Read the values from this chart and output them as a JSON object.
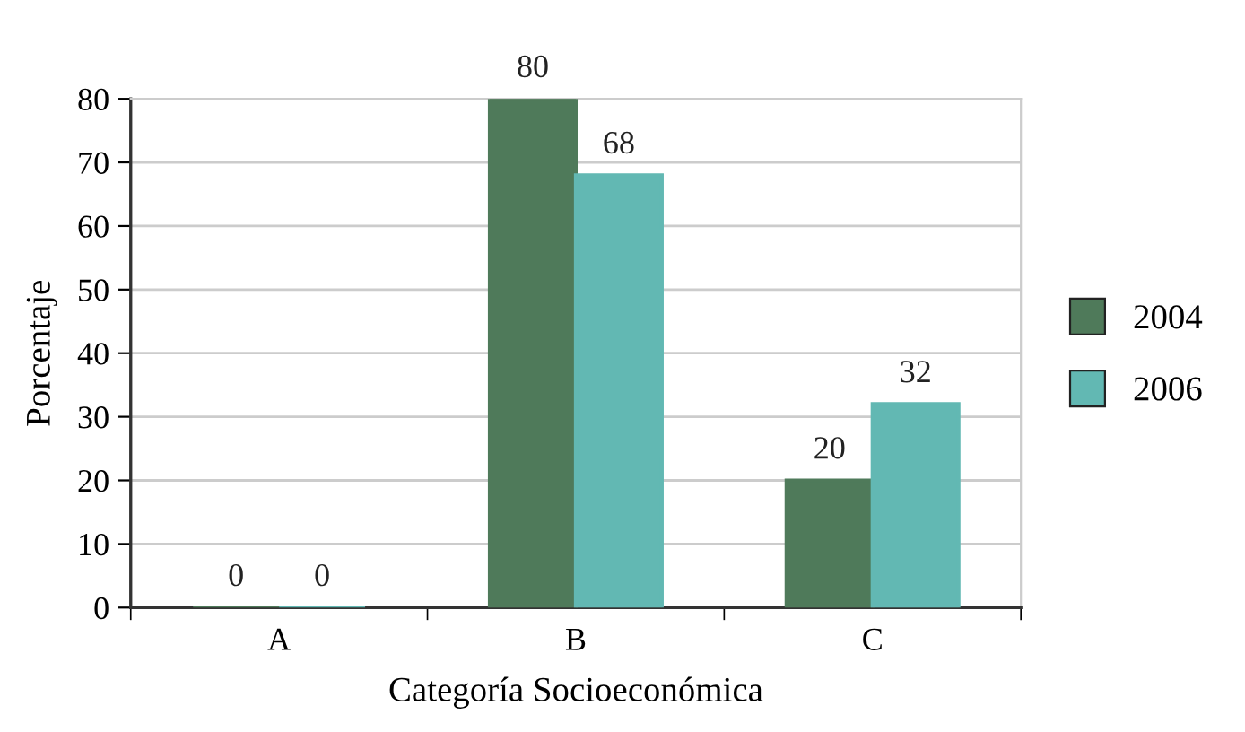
{
  "chart_data": {
    "type": "bar",
    "xlabel": "Categoría Socioeconómica",
    "ylabel": "Porcentaje",
    "categories": [
      "A",
      "B",
      "C"
    ],
    "series": [
      {
        "name": "2004",
        "color": "#4f7a5a",
        "values": [
          0,
          80,
          20
        ]
      },
      {
        "name": "2006",
        "color": "#62b8b3",
        "values": [
          0,
          68,
          32
        ]
      }
    ],
    "ylim": [
      0,
      80
    ],
    "yticks": [
      0,
      10,
      20,
      30,
      40,
      50,
      60,
      70,
      80
    ],
    "grid": "y",
    "legend": "right",
    "data_labels": true
  }
}
